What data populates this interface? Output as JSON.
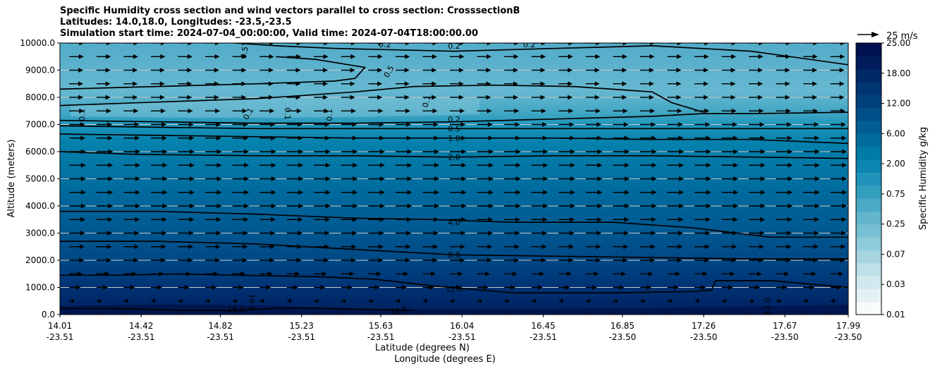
{
  "title": {
    "line1": "Specific Humidity cross section and wind vectors parallel to cross section: CrosssectionB",
    "line2": "Latitudes: 14.0,18.0, Longitudes: -23.5,-23.5",
    "line3": "Simulation start time: 2024-07-04_00:00:00, Valid time: 2024-07-04T18:00:00.00"
  },
  "chart_data": {
    "type": "contour",
    "ylabel": "Altitude (meters)",
    "xlabel_lat": "Latitude (degrees N)",
    "xlabel_lon": "Longitude (degrees E)",
    "ylim": [
      0,
      10000
    ],
    "yticks": [
      "0.0",
      "1000.0",
      "2000.0",
      "3000.0",
      "4000.0",
      "5000.0",
      "6000.0",
      "7000.0",
      "8000.0",
      "9000.0",
      "10000.0"
    ],
    "xticks": [
      {
        "lat": "14.01",
        "lon": "-23.51"
      },
      {
        "lat": "14.42",
        "lon": "-23.51"
      },
      {
        "lat": "14.82",
        "lon": "-23.51"
      },
      {
        "lat": "15.23",
        "lon": "-23.51"
      },
      {
        "lat": "15.63",
        "lon": "-23.51"
      },
      {
        "lat": "16.04",
        "lon": "-23.51"
      },
      {
        "lat": "16.45",
        "lon": "-23.51"
      },
      {
        "lat": "16.85",
        "lon": "-23.50"
      },
      {
        "lat": "17.26",
        "lon": "-23.50"
      },
      {
        "lat": "17.67",
        "lon": "-23.50"
      },
      {
        "lat": "17.99",
        "lon": "-23.50"
      }
    ],
    "colorbar": {
      "label": "Specific Humidity g/kg",
      "ticks": [
        "0.01",
        "0.03",
        "0.07",
        "0.25",
        "0.75",
        "2.00",
        "6.00",
        "12.00",
        "18.00",
        "25.00"
      ],
      "colors": [
        "#f7fbfc",
        "#e4f1f4",
        "#d0e8ee",
        "#bde0e9",
        "#a6d4e0",
        "#8ecbdb",
        "#77c0d4",
        "#62b5cd",
        "#4baac6",
        "#329fbf",
        "#1f93b9",
        "#0c86b1",
        "#007aa6",
        "#006c9e",
        "#005e93",
        "#004f88",
        "#00417c",
        "#003571",
        "#002966",
        "#001c5b",
        "#00124f"
      ]
    },
    "quiver_key": {
      "label": "25 m/s",
      "value": 25
    },
    "wind_u_profile": [
      {
        "z": 0,
        "u": 1
      },
      {
        "z": 250,
        "u": 3
      },
      {
        "z": 500,
        "u": 6
      },
      {
        "z": 750,
        "u": 10
      },
      {
        "z": 1000,
        "u": 13
      },
      {
        "z": 1500,
        "u": 15
      },
      {
        "z": 2000,
        "u": 17
      },
      {
        "z": 4000,
        "u": 19
      },
      {
        "z": 6000,
        "u": 19
      },
      {
        "z": 7000,
        "u": 18
      },
      {
        "z": 8000,
        "u": 16
      },
      {
        "z": 9000,
        "u": 16
      },
      {
        "z": 10000,
        "u": 17
      }
    ],
    "contours": [
      {
        "level": "16.0",
        "points": [
          [
            14.01,
            220
          ],
          [
            14.3,
            220
          ],
          [
            14.6,
            160
          ],
          [
            14.9,
            150
          ],
          [
            15.1,
            230
          ],
          [
            15.3,
            240
          ],
          [
            15.5,
            200
          ],
          [
            15.75,
            170
          ],
          [
            15.8,
            160
          ]
        ]
      },
      {
        "level": "12.0",
        "points": [
          [
            14.01,
            1450
          ],
          [
            14.3,
            1450
          ],
          [
            14.6,
            1500
          ],
          [
            14.9,
            1450
          ],
          [
            15.3,
            1400
          ],
          [
            15.6,
            1300
          ],
          [
            15.9,
            1050
          ],
          [
            16.3,
            800
          ],
          [
            16.8,
            800
          ],
          [
            17.2,
            850
          ],
          [
            17.3,
            900
          ],
          [
            17.32,
            1250
          ],
          [
            17.6,
            1250
          ],
          [
            17.99,
            1000
          ]
        ]
      },
      {
        "level": "8.0",
        "points": [
          [
            14.01,
            2700
          ],
          [
            14.5,
            2700
          ],
          [
            15.0,
            2600
          ],
          [
            15.5,
            2400
          ],
          [
            16.0,
            2200
          ],
          [
            16.5,
            2150
          ],
          [
            17.0,
            2100
          ],
          [
            17.5,
            2050
          ],
          [
            17.99,
            2050
          ]
        ]
      },
      {
        "level": "4.0",
        "points": [
          [
            14.01,
            3800
          ],
          [
            14.5,
            3800
          ],
          [
            15.0,
            3700
          ],
          [
            15.5,
            3550
          ],
          [
            15.9,
            3500
          ],
          [
            16.3,
            3400
          ],
          [
            16.8,
            3400
          ],
          [
            17.2,
            3200
          ],
          [
            17.6,
            2850
          ],
          [
            17.99,
            2850
          ]
        ]
      },
      {
        "level": "2.0",
        "points": [
          [
            14.01,
            6000
          ],
          [
            14.4,
            5900
          ],
          [
            15.0,
            5850
          ],
          [
            15.5,
            5850
          ],
          [
            16.0,
            5800
          ],
          [
            16.5,
            5850
          ],
          [
            17.0,
            5850
          ],
          [
            17.5,
            5800
          ],
          [
            17.99,
            5750
          ]
        ]
      },
      {
        "level": "1.0",
        "points": [
          [
            14.01,
            6650
          ],
          [
            14.5,
            6600
          ],
          [
            15.0,
            6550
          ],
          [
            15.5,
            6500
          ],
          [
            16.0,
            6500
          ],
          [
            16.5,
            6500
          ],
          [
            17.0,
            6450
          ],
          [
            17.5,
            6450
          ],
          [
            17.99,
            6300
          ]
        ]
      },
      {
        "level": "0.5",
        "points": [
          [
            14.01,
            6950
          ],
          [
            14.5,
            6900
          ],
          [
            15.0,
            6850
          ],
          [
            15.5,
            6850
          ],
          [
            16.0,
            6850
          ],
          [
            16.5,
            6850
          ],
          [
            17.0,
            6850
          ],
          [
            17.5,
            6850
          ],
          [
            17.99,
            6850
          ]
        ]
      },
      {
        "level": "0.2",
        "points": [
          [
            14.01,
            7150
          ],
          [
            14.5,
            7100
          ],
          [
            15.0,
            7050
          ],
          [
            15.5,
            7050
          ],
          [
            16.0,
            7100
          ],
          [
            16.5,
            7200
          ],
          [
            17.0,
            7300
          ],
          [
            17.25,
            7400
          ],
          [
            17.5,
            7400
          ],
          [
            17.99,
            7450
          ]
        ]
      },
      {
        "level": "0.1",
        "points": [
          [
            14.01,
            7700
          ],
          [
            14.4,
            7800
          ],
          [
            15.0,
            7950
          ],
          [
            15.5,
            8200
          ],
          [
            15.8,
            8400
          ],
          [
            16.2,
            8450
          ],
          [
            16.6,
            8400
          ],
          [
            17.0,
            8200
          ],
          [
            17.1,
            7800
          ],
          [
            17.26,
            7450
          ]
        ]
      },
      {
        "level": "0.5",
        "points": [
          [
            14.01,
            8300
          ],
          [
            14.5,
            8400
          ],
          [
            15.0,
            8500
          ],
          [
            15.4,
            8600
          ],
          [
            15.5,
            8700
          ],
          [
            15.55,
            9100
          ],
          [
            15.3,
            9400
          ],
          [
            15.1,
            9500
          ]
        ]
      },
      {
        "level": "0.2",
        "points": [
          [
            14.9,
            10000
          ],
          [
            15.1,
            9900
          ],
          [
            15.4,
            9800
          ],
          [
            16.0,
            9700
          ],
          [
            16.5,
            9800
          ],
          [
            17.0,
            9900
          ],
          [
            17.5,
            9700
          ],
          [
            17.99,
            9200
          ]
        ]
      }
    ],
    "inline_labels": [
      {
        "text": "0.5",
        "lat": 14.94,
        "z": 9650,
        "rot": -80
      },
      {
        "text": "0.2",
        "lat": 15.65,
        "z": 9950,
        "rot": 0
      },
      {
        "text": "0.2",
        "lat": 16.0,
        "z": 9900,
        "rot": 0
      },
      {
        "text": "0.2",
        "lat": 16.38,
        "z": 9950,
        "rot": 0
      },
      {
        "text": "0.5",
        "lat": 15.67,
        "z": 8950,
        "rot": -60
      },
      {
        "text": "0.1",
        "lat": 15.86,
        "z": 7850,
        "rot": -75
      },
      {
        "text": "0.1",
        "lat": 14.12,
        "z": 7350,
        "rot": -90
      },
      {
        "text": "0.1",
        "lat": 14.96,
        "z": 7400,
        "rot": -60
      },
      {
        "text": "0.1",
        "lat": 15.16,
        "z": 7400,
        "rot": 90
      },
      {
        "text": "0.1",
        "lat": 15.37,
        "z": 7350,
        "rot": -90
      },
      {
        "text": "0.2",
        "lat": 16.0,
        "z": 7200,
        "rot": 0
      },
      {
        "text": "0.5",
        "lat": 16.0,
        "z": 6850,
        "rot": 0
      },
      {
        "text": "1.0",
        "lat": 16.0,
        "z": 6500,
        "rot": 0
      },
      {
        "text": "2.0",
        "lat": 16.0,
        "z": 5800,
        "rot": 0
      },
      {
        "text": "4.0",
        "lat": 16.0,
        "z": 3400,
        "rot": 0
      },
      {
        "text": "8.0",
        "lat": 16.0,
        "z": 2200,
        "rot": 0
      },
      {
        "text": "12.0",
        "lat": 16.0,
        "z": 950,
        "rot": 0
      },
      {
        "text": "16.0",
        "lat": 14.98,
        "z": 450,
        "rot": 90
      },
      {
        "text": "16.0",
        "lat": 14.9,
        "z": 200,
        "rot": 0
      },
      {
        "text": "16.0",
        "lat": 15.72,
        "z": 130,
        "rot": -15
      },
      {
        "text": "12.0",
        "lat": 17.58,
        "z": 300,
        "rot": -90
      }
    ]
  }
}
